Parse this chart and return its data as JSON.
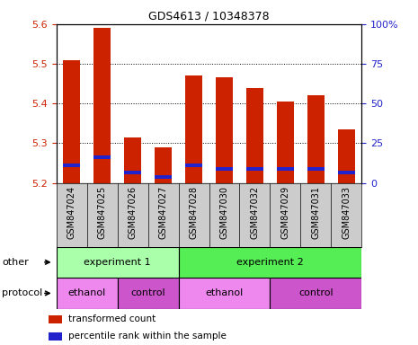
{
  "title": "GDS4613 / 10348378",
  "samples": [
    "GSM847024",
    "GSM847025",
    "GSM847026",
    "GSM847027",
    "GSM847028",
    "GSM847030",
    "GSM847032",
    "GSM847029",
    "GSM847031",
    "GSM847033"
  ],
  "bar_values": [
    5.51,
    5.59,
    5.315,
    5.29,
    5.47,
    5.465,
    5.44,
    5.405,
    5.42,
    5.335
  ],
  "blue_marker_values": [
    5.245,
    5.265,
    5.225,
    5.215,
    5.245,
    5.235,
    5.235,
    5.235,
    5.235,
    5.225
  ],
  "ymin": 5.2,
  "ymax": 5.6,
  "y_ticks_left": [
    5.2,
    5.3,
    5.4,
    5.5,
    5.6
  ],
  "y_ticks_right_vals": [
    0,
    25,
    50,
    75,
    100
  ],
  "bar_color": "#cc2200",
  "blue_marker_color": "#2222cc",
  "bar_width": 0.55,
  "groups_other": [
    {
      "label": "experiment 1",
      "start": 0,
      "end": 4,
      "color": "#aaffaa"
    },
    {
      "label": "experiment 2",
      "start": 4,
      "end": 10,
      "color": "#55ee55"
    }
  ],
  "groups_protocol": [
    {
      "label": "ethanol",
      "start": 0,
      "end": 2,
      "color": "#ee88ee"
    },
    {
      "label": "control",
      "start": 2,
      "end": 4,
      "color": "#cc55cc"
    },
    {
      "label": "ethanol",
      "start": 4,
      "end": 7,
      "color": "#ee88ee"
    },
    {
      "label": "control",
      "start": 7,
      "end": 10,
      "color": "#cc55cc"
    }
  ],
  "legend_items": [
    {
      "label": "transformed count",
      "color": "#cc2200"
    },
    {
      "label": "percentile rank within the sample",
      "color": "#2222cc"
    }
  ],
  "tick_color_left": "#cc2200",
  "tick_color_right": "#2222cc",
  "sample_bg": "#cccccc",
  "spine_color": "#000000"
}
